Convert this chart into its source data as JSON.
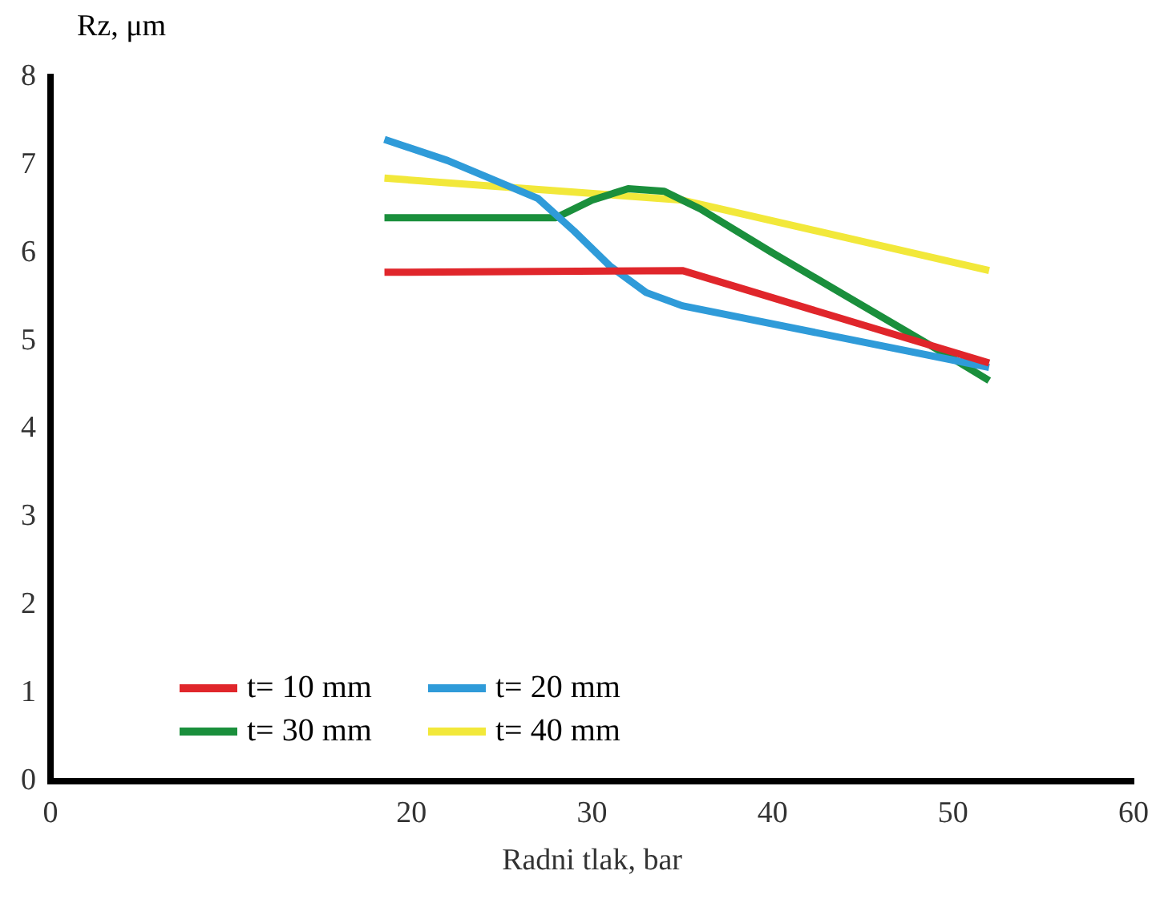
{
  "chart_data": {
    "type": "line",
    "xlabel": "Radni tlak, bar",
    "ylabel": "Rz, μm",
    "xlim": [
      0,
      60
    ],
    "ylim": [
      0,
      8
    ],
    "xticks": [
      0,
      20,
      30,
      40,
      50,
      60
    ],
    "yticks": [
      0,
      1,
      2,
      3,
      4,
      5,
      6,
      7,
      8
    ],
    "grid": false,
    "legend": "bottom left",
    "marker": "none",
    "line_style": "solid",
    "series": [
      {
        "name": "t= 10 mm",
        "color": "#e0262b",
        "x": [
          18.5,
          35,
          52
        ],
        "values": [
          5.78,
          5.8,
          4.75
        ]
      },
      {
        "name": "t= 20 mm",
        "color": "#2f9bd9",
        "x": [
          18.5,
          22,
          27,
          29,
          31,
          33,
          35,
          52
        ],
        "values": [
          7.29,
          7.05,
          6.62,
          6.25,
          5.85,
          5.55,
          5.4,
          4.7
        ]
      },
      {
        "name": "t= 30 mm",
        "color": "#1a8f3c",
        "x": [
          18.5,
          28,
          30,
          32,
          34,
          36,
          40,
          45,
          50,
          52
        ],
        "values": [
          6.4,
          6.4,
          6.6,
          6.73,
          6.7,
          6.5,
          6.0,
          5.4,
          4.8,
          4.55
        ]
      },
      {
        "name": "t= 40 mm",
        "color": "#f2e83a",
        "x": [
          18.5,
          35,
          52
        ],
        "values": [
          6.85,
          6.6,
          5.8
        ]
      }
    ]
  }
}
